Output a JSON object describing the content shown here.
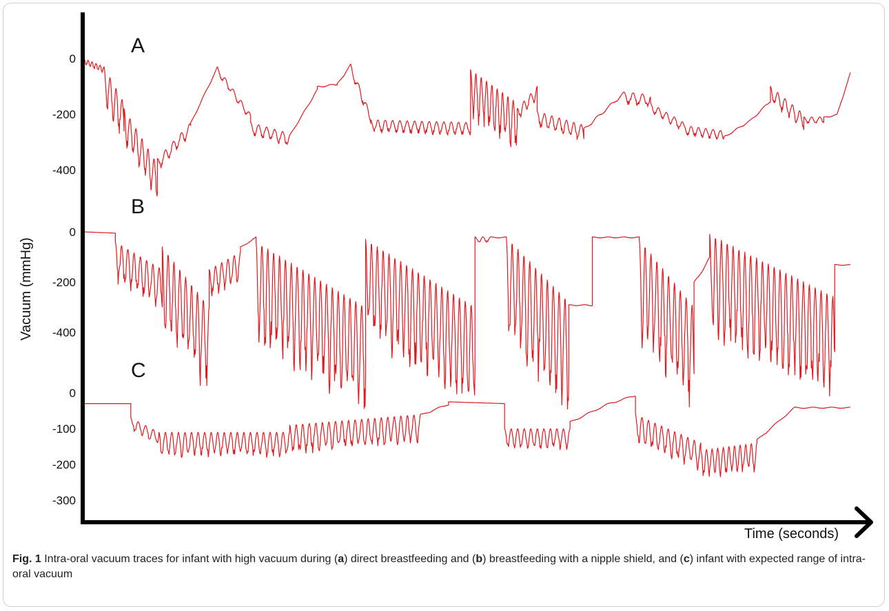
{
  "chart_data": {
    "type": "line",
    "ylabel": "Vacuum (mmHg)",
    "xlabel": "Time (seconds)",
    "trace_color": "#e0191e",
    "panels": [
      {
        "name": "A",
        "yticks": [
          0,
          -200,
          -400
        ],
        "ylim": [
          -430,
          30
        ],
        "segments": [
          {
            "from": 0,
            "to": 3,
            "start": 0,
            "end": -30,
            "amp": 20,
            "period": 0.6
          },
          {
            "from": 3,
            "to": 6,
            "start": -30,
            "end": -160,
            "amp": 120,
            "period": 0.9
          },
          {
            "from": 6,
            "to": 11,
            "start": -180,
            "end": -380,
            "amp": 110,
            "period": 0.9
          },
          {
            "from": 11,
            "to": 16,
            "start": -360,
            "end": -230,
            "amp": 40,
            "period": 1.2
          },
          {
            "from": 16,
            "to": 20,
            "start": -230,
            "end": -30,
            "amp": 6,
            "period": 2
          },
          {
            "from": 20,
            "to": 25,
            "start": -30,
            "end": -200,
            "amp": 25,
            "period": 1.2
          },
          {
            "from": 25,
            "to": 31,
            "start": -230,
            "end": -270,
            "amp": 40,
            "period": 1.2
          },
          {
            "from": 31,
            "to": 35,
            "start": -270,
            "end": -110,
            "amp": 5,
            "period": 2
          },
          {
            "from": 35,
            "to": 38,
            "start": -100,
            "end": -90,
            "amp": 5,
            "period": 2
          },
          {
            "from": 38,
            "to": 40,
            "start": -90,
            "end": -20,
            "amp": 6,
            "period": 2
          },
          {
            "from": 40,
            "to": 43,
            "start": -20,
            "end": -200,
            "amp": 30,
            "period": 1.2
          },
          {
            "from": 43,
            "to": 58,
            "start": -220,
            "end": -230,
            "amp": 40,
            "period": 1.1
          },
          {
            "from": 58,
            "to": 65,
            "start": -40,
            "end": -160,
            "amp": 150,
            "period": 0.8
          },
          {
            "from": 65,
            "to": 68,
            "start": -180,
            "end": -100,
            "amp": 40,
            "period": 1.0
          },
          {
            "from": 68,
            "to": 75,
            "start": -190,
            "end": -240,
            "amp": 50,
            "period": 1.1
          },
          {
            "from": 75,
            "to": 81,
            "start": -250,
            "end": -120,
            "amp": 10,
            "period": 2
          },
          {
            "from": 81,
            "to": 85,
            "start": -120,
            "end": -130,
            "amp": 40,
            "period": 1.4
          },
          {
            "from": 85,
            "to": 90,
            "start": -160,
            "end": -230,
            "amp": 30,
            "period": 1.2
          },
          {
            "from": 90,
            "to": 96,
            "start": -240,
            "end": -260,
            "amp": 30,
            "period": 1.1
          },
          {
            "from": 96,
            "to": 100,
            "start": -280,
            "end": -220,
            "amp": 6,
            "period": 2
          },
          {
            "from": 100,
            "to": 103,
            "start": -220,
            "end": -150,
            "amp": 6,
            "period": 2
          },
          {
            "from": 103,
            "to": 108,
            "start": -100,
            "end": -200,
            "amp": 50,
            "period": 1.1
          },
          {
            "from": 108,
            "to": 111,
            "start": -210,
            "end": -210,
            "amp": 20,
            "period": 1.2
          },
          {
            "from": 111,
            "to": 113,
            "start": -210,
            "end": -200,
            "amp": 4,
            "period": 2
          },
          {
            "from": 113,
            "to": 115,
            "start": -200,
            "end": -50,
            "amp": 4,
            "period": 2
          }
        ]
      },
      {
        "name": "B",
        "yticks": [
          0,
          -200,
          -400
        ],
        "ylim": [
          -430,
          30
        ],
        "segments": [
          {
            "from": 0,
            "to": 4,
            "start": 0,
            "end": -5,
            "amp": 0,
            "period": 2
          },
          {
            "from": 4,
            "to": 10,
            "start": -40,
            "end": -150,
            "amp": 140,
            "period": 0.8
          },
          {
            "from": 10,
            "to": 16,
            "start": -60,
            "end": -300,
            "amp": 300,
            "period": 0.75
          },
          {
            "from": 16,
            "to": 20,
            "start": -150,
            "end": -80,
            "amp": 100,
            "period": 0.8
          },
          {
            "from": 20,
            "to": 22,
            "start": -60,
            "end": -20,
            "amp": 4,
            "period": 2
          },
          {
            "from": 22,
            "to": 36,
            "start": -40,
            "end": -300,
            "amp": 360,
            "period": 0.75
          },
          {
            "from": 36,
            "to": 50,
            "start": -30,
            "end": -300,
            "amp": 350,
            "period": 0.75
          },
          {
            "from": 50,
            "to": 52,
            "start": -20,
            "end": -20,
            "amp": 20,
            "period": 1
          },
          {
            "from": 52,
            "to": 54,
            "start": -20,
            "end": -20,
            "amp": 4,
            "period": 2
          },
          {
            "from": 54,
            "to": 62,
            "start": -20,
            "end": -280,
            "amp": 380,
            "period": 0.75
          },
          {
            "from": 62,
            "to": 65,
            "start": -290,
            "end": -290,
            "amp": 4,
            "period": 2
          },
          {
            "from": 65,
            "to": 71,
            "start": -20,
            "end": -20,
            "amp": 4,
            "period": 2
          },
          {
            "from": 71,
            "to": 78,
            "start": -30,
            "end": -300,
            "amp": 360,
            "period": 0.75
          },
          {
            "from": 78,
            "to": 80,
            "start": -200,
            "end": -100,
            "amp": 10,
            "period": 2
          },
          {
            "from": 80,
            "to": 96,
            "start": -10,
            "end": -260,
            "amp": 360,
            "period": 0.75
          },
          {
            "from": 96,
            "to": 98,
            "start": -130,
            "end": -130,
            "amp": 3,
            "period": 2
          }
        ]
      },
      {
        "name": "C",
        "yticks": [
          0,
          -100,
          -200,
          -300
        ],
        "ylim": [
          -310,
          10
        ],
        "segments": [
          {
            "from": 0,
            "to": 5,
            "start": -30,
            "end": -30,
            "amp": 0,
            "period": 2
          },
          {
            "from": 5,
            "to": 8,
            "start": -70,
            "end": -110,
            "amp": 30,
            "period": 0.8
          },
          {
            "from": 8,
            "to": 22,
            "start": -110,
            "end": -110,
            "amp": 60,
            "period": 0.7
          },
          {
            "from": 22,
            "to": 36,
            "start": -90,
            "end": -60,
            "amp": 70,
            "period": 0.7
          },
          {
            "from": 36,
            "to": 39,
            "start": -60,
            "end": -30,
            "amp": 4,
            "period": 2
          },
          {
            "from": 39,
            "to": 45,
            "start": -25,
            "end": -30,
            "amp": 0,
            "period": 2
          },
          {
            "from": 45,
            "to": 52,
            "start": -100,
            "end": -100,
            "amp": 50,
            "period": 0.7
          },
          {
            "from": 52,
            "to": 56,
            "start": -80,
            "end": -30,
            "amp": 4,
            "period": 2
          },
          {
            "from": 56,
            "to": 59,
            "start": -30,
            "end": -5,
            "amp": 4,
            "period": 2
          },
          {
            "from": 59,
            "to": 66,
            "start": -60,
            "end": -140,
            "amp": 70,
            "period": 0.7
          },
          {
            "from": 66,
            "to": 72,
            "start": -160,
            "end": -140,
            "amp": 70,
            "period": 0.6
          },
          {
            "from": 72,
            "to": 76,
            "start": -130,
            "end": -40,
            "amp": 4,
            "period": 2
          },
          {
            "from": 76,
            "to": 82,
            "start": -40,
            "end": -40,
            "amp": 3,
            "period": 2
          }
        ]
      }
    ]
  },
  "caption": {
    "fig": "Fig. 1",
    "t1": " Intra-oral vacuum traces for infant with high vacuum during (",
    "a": "a",
    "t2": ") direct breastfeeding and (",
    "b": "b",
    "t3": ") breastfeeding with a nipple shield, and (",
    "c": "c",
    "t4": ") infant with expected range of intra-oral vacuum"
  }
}
